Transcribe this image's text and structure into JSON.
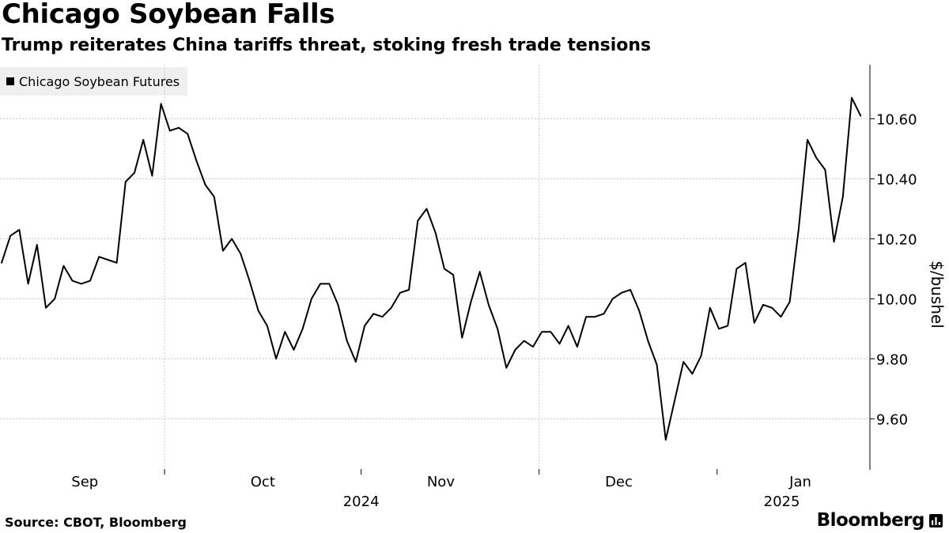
{
  "title": "Chicago Soybean Falls",
  "subtitle": "Trump reiterates China tariffs threat, stoking fresh trade tensions",
  "source": "Source: CBOT, Bloomberg",
  "brand": "Bloomberg",
  "colors": {
    "line": "#000000",
    "grid": "#c8c8c8",
    "legend_bg": "#f0f0f0"
  },
  "chart_data": {
    "type": "line",
    "title": "Chicago Soybean Falls",
    "subtitle": "Trump reiterates China tariffs threat, stoking fresh trade tensions",
    "ylabel": "$/bushel",
    "xlabel": "",
    "ylim": [
      9.43,
      10.78
    ],
    "yticks": [
      9.6,
      9.8,
      10.0,
      10.2,
      10.4,
      10.6
    ],
    "ytick_labels": [
      "9.60",
      "9.80",
      "10.00",
      "10.20",
      "10.40",
      "10.60"
    ],
    "grid": true,
    "legend_position": "top-left",
    "x_index_range": [
      0,
      96
    ],
    "x_month_labels": [
      {
        "label": "Sep",
        "index": 9.4
      },
      {
        "label": "Oct",
        "index": 29.5
      },
      {
        "label": "Nov",
        "index": 49.6
      },
      {
        "label": "Dec",
        "index": 69.7
      },
      {
        "label": "Jan",
        "index": 90.2
      }
    ],
    "x_year_labels": [
      {
        "label": "2024",
        "index": 40.6
      },
      {
        "label": "2025",
        "index": 88.1
      }
    ],
    "x_tick_marks": [
      18.4,
      40.6,
      60.7,
      80.8
    ],
    "series": [
      {
        "name": "Chicago Soybean Futures",
        "values": [
          10.12,
          10.21,
          10.23,
          10.05,
          10.18,
          9.97,
          10.0,
          10.11,
          10.06,
          10.05,
          10.06,
          10.14,
          10.13,
          10.12,
          10.39,
          10.42,
          10.53,
          10.41,
          10.65,
          10.56,
          10.57,
          10.55,
          10.46,
          10.38,
          10.34,
          10.16,
          10.2,
          10.15,
          10.06,
          9.96,
          9.91,
          9.8,
          9.89,
          9.83,
          9.9,
          10.0,
          10.05,
          10.05,
          9.98,
          9.86,
          9.79,
          9.91,
          9.95,
          9.94,
          9.97,
          10.02,
          10.03,
          10.26,
          10.3,
          10.22,
          10.1,
          10.08,
          9.87,
          9.99,
          10.09,
          9.98,
          9.9,
          9.77,
          9.83,
          9.86,
          9.84,
          9.89,
          9.89,
          9.85,
          9.91,
          9.84,
          9.94,
          9.94,
          9.95,
          10.0,
          10.02,
          10.03,
          9.96,
          9.86,
          9.78,
          9.53,
          9.66,
          9.79,
          9.75,
          9.81,
          9.97,
          9.9,
          9.91,
          10.1,
          10.12,
          9.92,
          9.98,
          9.97,
          9.94,
          9.99,
          10.23,
          10.53,
          10.47,
          10.43,
          10.19,
          10.34,
          10.67,
          10.61
        ]
      }
    ]
  }
}
